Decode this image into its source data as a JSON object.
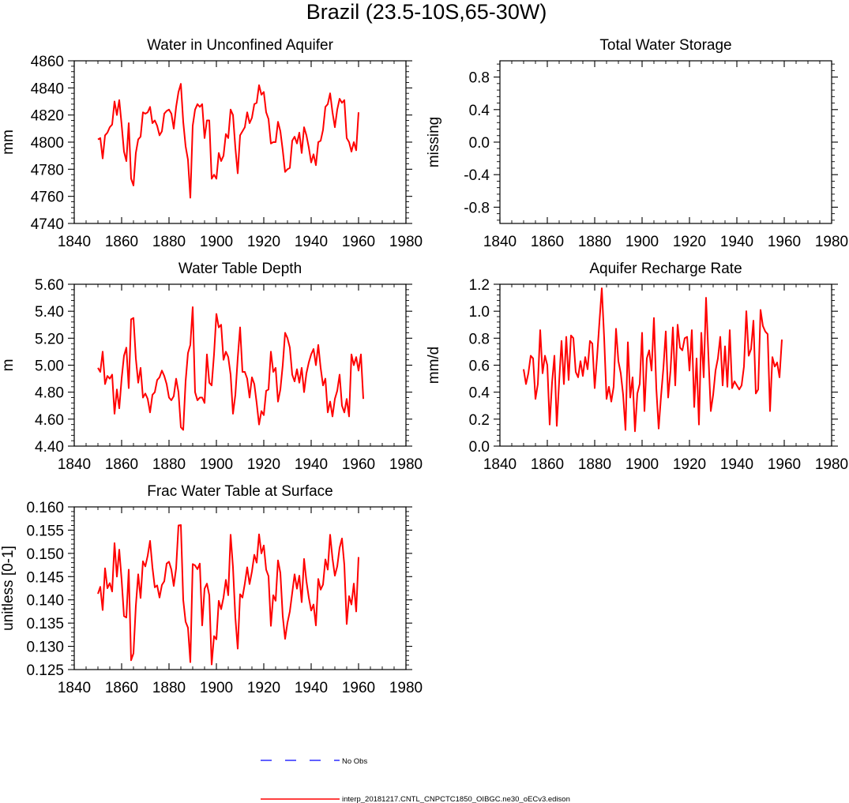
{
  "figure": {
    "title": "Brazil (23.5-10S,65-30W)"
  },
  "legend": {
    "obs_label": "No Obs",
    "obs_color": "#0000ff",
    "model_label": "interp_20181217.CNTL_CNPCTC1850_OIBGC.ne30_oECv3.edison",
    "model_color": "#ff0000"
  },
  "chart_data": [
    {
      "id": "unconfined",
      "type": "line",
      "title": "Water in Unconfined Aquifer",
      "ylabel": "mm",
      "xlabel": "",
      "xlim": [
        1840,
        1980
      ],
      "ylim": [
        4740,
        4860
      ],
      "xticks": [
        1840,
        1860,
        1880,
        1900,
        1920,
        1940,
        1960,
        1980
      ],
      "xticklabels": [
        "1840",
        "1860",
        "1880",
        "1900",
        "1920",
        "1940",
        "1960",
        "1980"
      ],
      "yticks": [
        4740,
        4760,
        4780,
        4800,
        4820,
        4840,
        4860
      ],
      "yticklabels": [
        "4740",
        "4760",
        "4780",
        "4800",
        "4820",
        "4840",
        "4860"
      ],
      "series": [
        {
          "name": "interp_20181217.CNTL_CNPCTC1850_OIBGC.ne30_oECv3.edison",
          "x_start": 1850,
          "x_step": 1,
          "values": [
            4802,
            4803,
            4788,
            4805,
            4807,
            4811,
            4813,
            4830,
            4820,
            4831,
            4813,
            4793,
            4786,
            4814,
            4773,
            4768,
            4792,
            4802,
            4804,
            4822,
            4821,
            4822,
            4826,
            4814,
            4816,
            4812,
            4805,
            4808,
            4821,
            4823,
            4824,
            4821,
            4810,
            4826,
            4837,
            4843,
            4815,
            4797,
            4787,
            4759,
            4812,
            4824,
            4828,
            4826,
            4828,
            4803,
            4816,
            4816,
            4773,
            4776,
            4773,
            4792,
            4786,
            4790,
            4806,
            4803,
            4824,
            4820,
            4796,
            4777,
            4805,
            4808,
            4811,
            4822,
            4814,
            4818,
            4828,
            4829,
            4842,
            4835,
            4837,
            4822,
            4817,
            4799,
            4800,
            4800,
            4815,
            4808,
            4794,
            4778,
            4780,
            4781,
            4801,
            4804,
            4799,
            4807,
            4792,
            4811,
            4805,
            4796,
            4785,
            4791,
            4783,
            4800,
            4801,
            4809,
            4826,
            4828,
            4836,
            4822,
            4811,
            4824,
            4832,
            4829,
            4831,
            4803,
            4800,
            4793,
            4800,
            4794,
            4822
          ]
        }
      ]
    },
    {
      "id": "tws",
      "type": "line",
      "title": "Total Water Storage",
      "ylabel": "missing",
      "xlabel": "",
      "xlim": [
        1840,
        1980
      ],
      "ylim": [
        -1.0,
        1.0
      ],
      "xticks": [
        1840,
        1860,
        1880,
        1900,
        1920,
        1940,
        1960,
        1980
      ],
      "xticklabels": [
        "1840",
        "1860",
        "1880",
        "1900",
        "1920",
        "1940",
        "1960",
        "1980"
      ],
      "yticks": [
        -0.8,
        -0.4,
        0.0,
        0.4,
        0.8
      ],
      "yticklabels": [
        "-0.8",
        "-0.4",
        "0.0",
        "0.4",
        "0.8"
      ],
      "series": []
    },
    {
      "id": "wtd",
      "type": "line",
      "title": "Water Table Depth",
      "ylabel": "m",
      "xlabel": "",
      "xlim": [
        1840,
        1980
      ],
      "ylim": [
        4.4,
        5.6
      ],
      "xticks": [
        1840,
        1860,
        1880,
        1900,
        1920,
        1940,
        1960,
        1980
      ],
      "xticklabels": [
        "1840",
        "1860",
        "1880",
        "1900",
        "1920",
        "1940",
        "1960",
        "1980"
      ],
      "yticks": [
        4.4,
        4.6,
        4.8,
        5.0,
        5.2,
        5.4,
        5.6
      ],
      "yticklabels": [
        "4.40",
        "4.60",
        "4.80",
        "5.00",
        "5.20",
        "5.40",
        "5.60"
      ],
      "series": [
        {
          "name": "interp_20181217.CNTL_CNPCTC1850_OIBGC.ne30_oECv3.edison",
          "x_start": 1850,
          "x_step": 1,
          "values": [
            4.98,
            4.95,
            5.1,
            4.86,
            4.92,
            4.9,
            4.93,
            4.64,
            4.82,
            4.68,
            4.9,
            5.07,
            5.13,
            4.83,
            5.34,
            5.35,
            5.05,
            4.87,
            4.98,
            4.76,
            4.79,
            4.75,
            4.65,
            4.78,
            4.8,
            4.89,
            4.91,
            4.96,
            4.92,
            4.86,
            4.76,
            4.74,
            4.77,
            4.9,
            4.8,
            4.54,
            4.52,
            4.88,
            5.09,
            5.15,
            5.43,
            4.8,
            4.74,
            4.76,
            4.76,
            4.72,
            5.08,
            4.87,
            4.85,
            5.08,
            5.38,
            5.28,
            5.3,
            5.04,
            5.1,
            5.06,
            4.93,
            4.64,
            4.78,
            5.05,
            5.28,
            4.95,
            4.95,
            4.9,
            4.76,
            4.91,
            4.86,
            4.72,
            4.56,
            4.66,
            4.63,
            4.81,
            4.82,
            5.1,
            4.95,
            4.98,
            4.73,
            4.82,
            5.0,
            5.24,
            5.2,
            5.13,
            4.93,
            4.88,
            4.97,
            4.87,
            4.98,
            4.8,
            4.94,
            5.02,
            5.08,
            5.12,
            5.0,
            5.15,
            4.98,
            4.85,
            4.9,
            4.65,
            4.73,
            4.62,
            4.75,
            4.81,
            4.93,
            4.7,
            4.65,
            4.75,
            4.62,
            5.08,
            5.0,
            5.06,
            4.96,
            5.08,
            4.75
          ]
        }
      ]
    },
    {
      "id": "recharge",
      "type": "line",
      "title": "Aquifer Recharge Rate",
      "ylabel": "mm/d",
      "xlabel": "",
      "xlim": [
        1840,
        1980
      ],
      "ylim": [
        0.0,
        1.2
      ],
      "xticks": [
        1840,
        1860,
        1880,
        1900,
        1920,
        1940,
        1960,
        1980
      ],
      "xticklabels": [
        "1840",
        "1860",
        "1880",
        "1900",
        "1920",
        "1940",
        "1960",
        "1980"
      ],
      "yticks": [
        0.0,
        0.2,
        0.4,
        0.6,
        0.8,
        1.0,
        1.2
      ],
      "yticklabels": [
        "0.0",
        "0.2",
        "0.4",
        "0.6",
        "0.8",
        "1.0",
        "1.2"
      ],
      "series": [
        {
          "name": "interp_20181217.CNTL_CNPCTC1850_OIBGC.ne30_oECv3.edison",
          "x_start": 1850,
          "x_step": 1,
          "values": [
            0.57,
            0.46,
            0.54,
            0.67,
            0.65,
            0.35,
            0.46,
            0.86,
            0.54,
            0.67,
            0.6,
            0.16,
            0.47,
            0.67,
            0.15,
            0.48,
            0.78,
            0.46,
            0.81,
            0.49,
            0.82,
            0.8,
            0.55,
            0.51,
            0.63,
            0.52,
            0.66,
            0.57,
            0.78,
            0.76,
            0.43,
            0.66,
            0.92,
            1.17,
            0.8,
            0.35,
            0.44,
            0.33,
            0.44,
            0.87,
            0.63,
            0.54,
            0.38,
            0.12,
            0.77,
            0.36,
            0.51,
            0.11,
            0.39,
            0.46,
            0.84,
            0.26,
            0.65,
            0.71,
            0.56,
            0.95,
            0.43,
            0.13,
            0.37,
            0.58,
            0.85,
            0.36,
            0.56,
            0.88,
            0.45,
            0.9,
            0.73,
            0.71,
            0.8,
            0.81,
            0.56,
            0.86,
            0.29,
            0.65,
            0.16,
            0.84,
            0.51,
            1.1,
            0.67,
            0.26,
            0.38,
            0.56,
            0.65,
            0.81,
            0.45,
            0.74,
            0.44,
            0.86,
            0.43,
            0.48,
            0.45,
            0.42,
            0.45,
            0.59,
            1.0,
            0.67,
            0.72,
            0.93,
            0.39,
            0.42,
            1.01,
            0.89,
            0.85,
            0.83,
            0.26,
            0.66,
            0.59,
            0.62,
            0.51,
            0.79
          ]
        }
      ]
    },
    {
      "id": "frac",
      "type": "line",
      "title": "Frac Water Table at Surface",
      "ylabel": "unitless [0-1]",
      "xlabel": "",
      "xlim": [
        1840,
        1980
      ],
      "ylim": [
        0.125,
        0.16
      ],
      "xticks": [
        1840,
        1860,
        1880,
        1900,
        1920,
        1940,
        1960,
        1980
      ],
      "xticklabels": [
        "1840",
        "1860",
        "1880",
        "1900",
        "1920",
        "1940",
        "1960",
        "1980"
      ],
      "yticks": [
        0.125,
        0.13,
        0.135,
        0.14,
        0.145,
        0.15,
        0.155,
        0.16
      ],
      "yticklabels": [
        "0.125",
        "0.130",
        "0.135",
        "0.140",
        "0.145",
        "0.150",
        "0.155",
        "0.160"
      ],
      "series": [
        {
          "name": "interp_20181217.CNTL_CNPCTC1850_OIBGC.ne30_oECv3.edison",
          "x_start": 1850,
          "x_step": 1,
          "values": [
            0.1413,
            0.1428,
            0.1378,
            0.1468,
            0.1425,
            0.1436,
            0.1418,
            0.1522,
            0.145,
            0.1508,
            0.1443,
            0.1365,
            0.1362,
            0.1465,
            0.127,
            0.1285,
            0.1387,
            0.1455,
            0.1404,
            0.1483,
            0.1472,
            0.1495,
            0.1527,
            0.147,
            0.1427,
            0.1431,
            0.1405,
            0.1432,
            0.144,
            0.1478,
            0.1482,
            0.1465,
            0.143,
            0.1468,
            0.156,
            0.1561,
            0.14,
            0.1353,
            0.134,
            0.1266,
            0.1477,
            0.1474,
            0.1466,
            0.1478,
            0.1345,
            0.1424,
            0.1435,
            0.141,
            0.1261,
            0.1322,
            0.1315,
            0.1398,
            0.138,
            0.1405,
            0.1443,
            0.141,
            0.154,
            0.147,
            0.1362,
            0.1295,
            0.1412,
            0.1405,
            0.1435,
            0.147,
            0.1434,
            0.1461,
            0.1497,
            0.148,
            0.1541,
            0.15,
            0.1517,
            0.1465,
            0.1451,
            0.1344,
            0.141,
            0.1398,
            0.1485,
            0.1458,
            0.1365,
            0.1316,
            0.1351,
            0.1375,
            0.1415,
            0.1455,
            0.1424,
            0.1452,
            0.1395,
            0.1488,
            0.144,
            0.1405,
            0.1377,
            0.139,
            0.1345,
            0.1445,
            0.1422,
            0.1433,
            0.1487,
            0.1465,
            0.154,
            0.1489,
            0.1452,
            0.1472,
            0.1512,
            0.1532,
            0.1475,
            0.1348,
            0.1408,
            0.139,
            0.1435,
            0.1375,
            0.1492
          ]
        }
      ]
    }
  ]
}
